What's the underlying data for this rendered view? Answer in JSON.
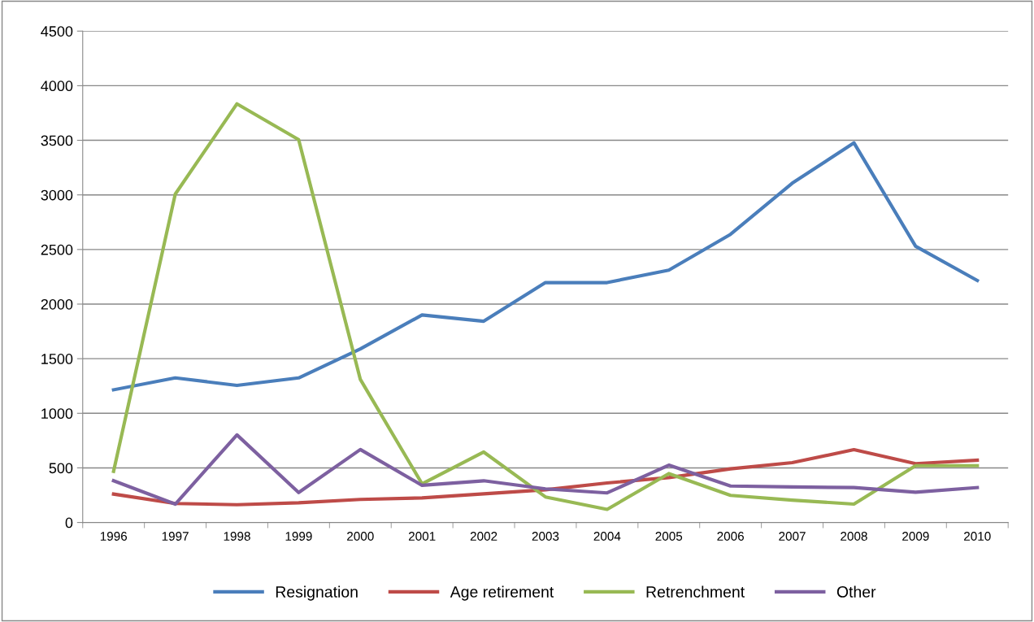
{
  "chart_data": {
    "type": "line",
    "categories": [
      "1996",
      "1997",
      "1998",
      "1999",
      "2000",
      "2001",
      "2002",
      "2003",
      "2004",
      "2005",
      "2006",
      "2007",
      "2008",
      "2009",
      "2010"
    ],
    "series": [
      {
        "name": "Resignation",
        "color": "#4a7ebb",
        "values": [
          1215,
          1324,
          1255,
          1324,
          1590,
          1900,
          1843,
          2197,
          2197,
          2311,
          2639,
          3107,
          3477,
          2530,
          2216
        ]
      },
      {
        "name": "Age retirement",
        "color": "#be4b48",
        "values": [
          260,
          174,
          163,
          180,
          211,
          225,
          262,
          300,
          362,
          411,
          491,
          548,
          667,
          539,
          570
        ]
      },
      {
        "name": "Retrenchment",
        "color": "#98b954",
        "values": [
          468,
          3007,
          3834,
          3506,
          1310,
          354,
          645,
          234,
          120,
          448,
          248,
          205,
          168,
          520,
          520
        ]
      },
      {
        "name": "Other",
        "color": "#7d60a0",
        "values": [
          382,
          168,
          802,
          274,
          668,
          340,
          382,
          308,
          271,
          525,
          334,
          325,
          320,
          277,
          320
        ]
      }
    ],
    "ylim": [
      0,
      4500
    ],
    "yticks": [
      0,
      500,
      1000,
      1500,
      2000,
      2500,
      3000,
      3500,
      4000,
      4500
    ],
    "grid": "y",
    "legend": "bottom",
    "marker": "none",
    "line_style": "solid"
  }
}
